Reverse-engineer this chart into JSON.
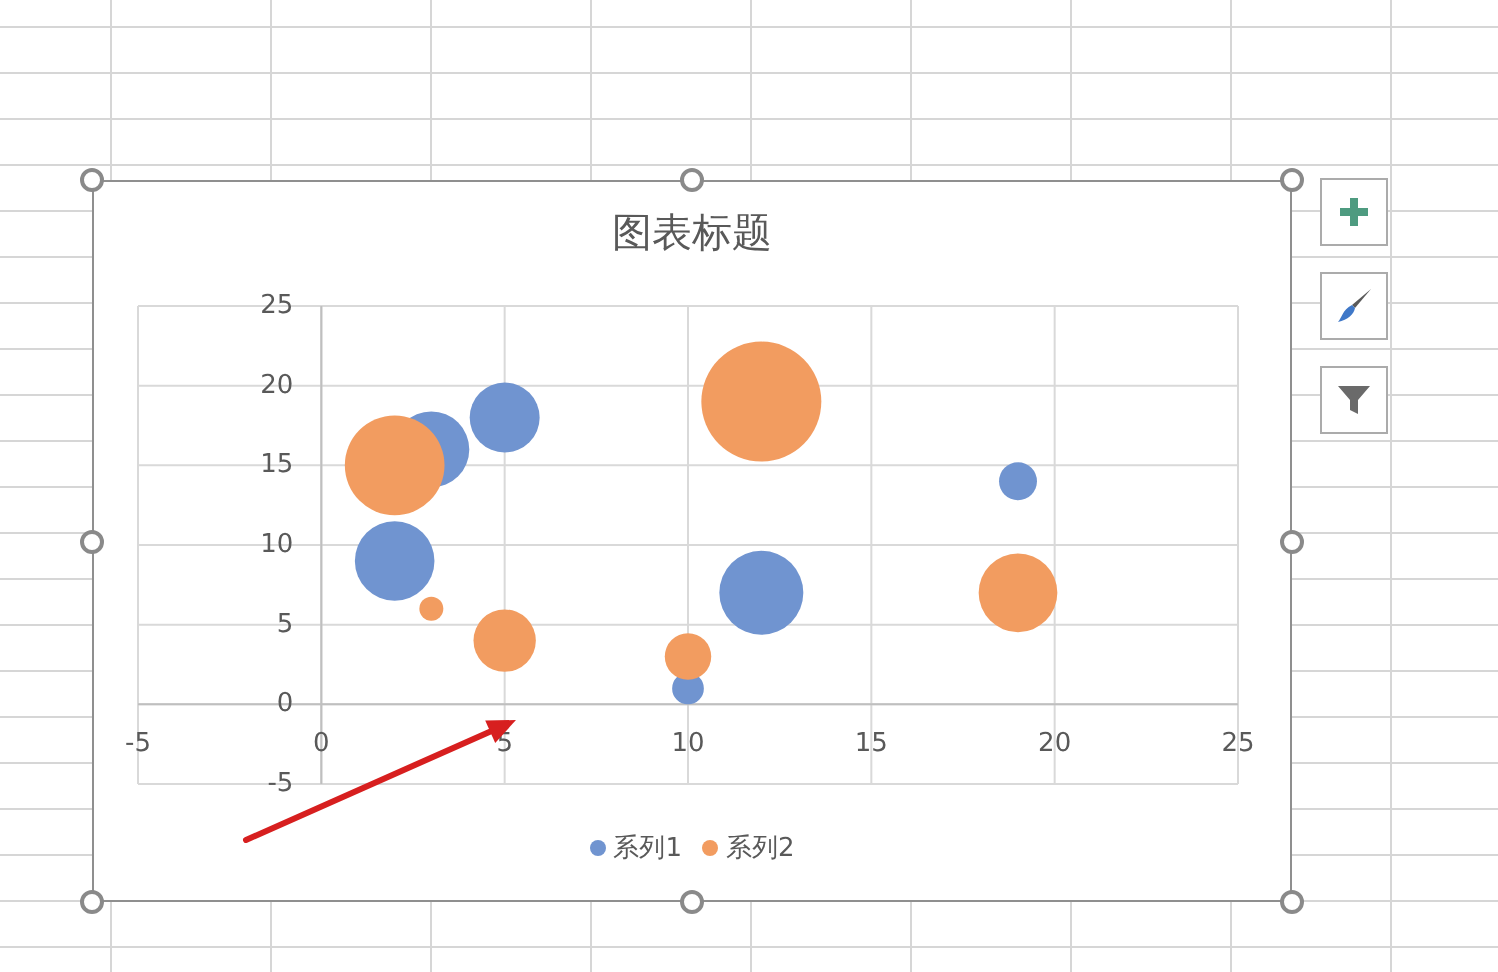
{
  "chart_data": {
    "type": "bubble",
    "title": "图表标题",
    "xlim": [
      -5,
      25
    ],
    "xticks": [
      -5,
      0,
      5,
      10,
      15,
      20,
      25
    ],
    "ylim": [
      -5,
      25
    ],
    "yticks": [
      -5,
      0,
      5,
      10,
      15,
      20,
      25
    ],
    "grid": true,
    "legend": "bottom",
    "series": [
      {
        "name": "系列1",
        "color": "#7094d0",
        "x": [
          3,
          5,
          2,
          10,
          12,
          19
        ],
        "values": [
          16,
          18,
          9,
          1,
          7,
          14
        ],
        "sizes": [
          0.4,
          0.34,
          0.44,
          0.07,
          0.49,
          0.1
        ]
      },
      {
        "name": "系列2",
        "color": "#f29c60",
        "x": [
          2,
          3,
          5,
          10,
          12,
          19
        ],
        "values": [
          15,
          6,
          4,
          3,
          19,
          7
        ],
        "sizes": [
          0.69,
          0.04,
          0.27,
          0.15,
          1,
          0.43
        ]
      }
    ]
  }
}
